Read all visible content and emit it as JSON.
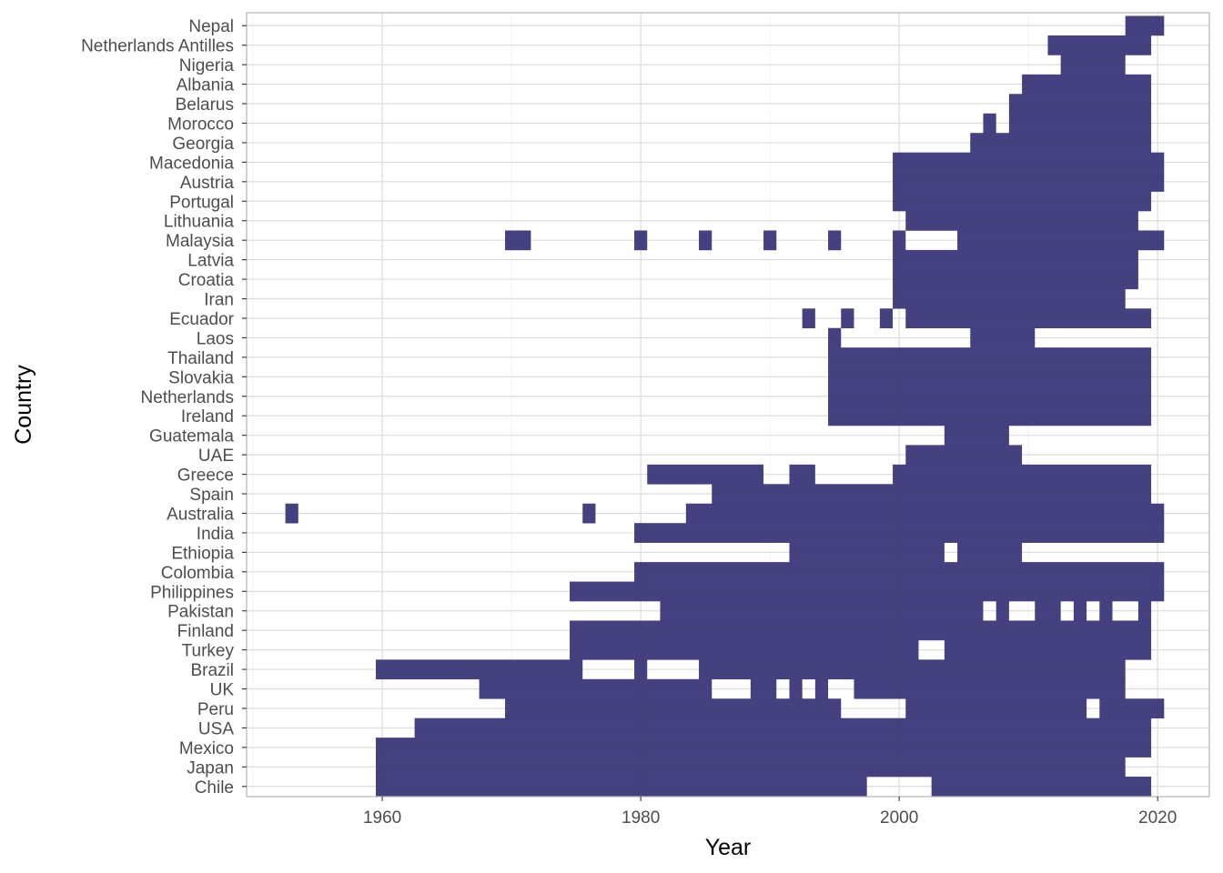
{
  "chart_data": {
    "type": "heatmap",
    "xlabel": "Year",
    "ylabel": "Country",
    "xlim": [
      1949.5,
      2024
    ],
    "x_ticks": [
      1960,
      1980,
      2000,
      2020
    ],
    "grid": true,
    "legend": "none",
    "fill_color": "#3f3a7b",
    "countries": [
      "Chile",
      "Japan",
      "Mexico",
      "USA",
      "Peru",
      "UK",
      "Brazil",
      "Turkey",
      "Finland",
      "Pakistan",
      "Philippines",
      "Colombia",
      "Ethiopia",
      "India",
      "Australia",
      "Spain",
      "Greece",
      "UAE",
      "Guatemala",
      "Ireland",
      "Netherlands",
      "Slovakia",
      "Thailand",
      "Laos",
      "Ecuador",
      "Iran",
      "Croatia",
      "Latvia",
      "Malaysia",
      "Lithuania",
      "Portugal",
      "Austria",
      "Macedonia",
      "Georgia",
      "Morocco",
      "Belarus",
      "Albania",
      "Nigeria",
      "Netherlands Antilles",
      "Nepal"
    ],
    "series": [
      {
        "country": "Chile",
        "ranges": [
          [
            1960,
            1997
          ],
          [
            2003,
            2019
          ]
        ]
      },
      {
        "country": "Japan",
        "ranges": [
          [
            1960,
            2017
          ]
        ]
      },
      {
        "country": "Mexico",
        "ranges": [
          [
            1960,
            2019
          ]
        ]
      },
      {
        "country": "USA",
        "ranges": [
          [
            1963,
            2019
          ]
        ]
      },
      {
        "country": "Peru",
        "ranges": [
          [
            1970,
            1995
          ],
          [
            2001,
            2014
          ],
          [
            2016,
            2020
          ]
        ]
      },
      {
        "country": "UK",
        "ranges": [
          [
            1968,
            1985
          ],
          [
            1989,
            1990
          ],
          [
            1992,
            1992
          ],
          [
            1994,
            1994
          ],
          [
            1997,
            2017
          ]
        ]
      },
      {
        "country": "Brazil",
        "ranges": [
          [
            1960,
            1975
          ],
          [
            1980,
            1980
          ],
          [
            1985,
            2017
          ]
        ]
      },
      {
        "country": "Turkey",
        "ranges": [
          [
            1975,
            2001
          ],
          [
            2004,
            2019
          ]
        ]
      },
      {
        "country": "Finland",
        "ranges": [
          [
            1975,
            2019
          ]
        ]
      },
      {
        "country": "Pakistan",
        "ranges": [
          [
            1982,
            2006
          ],
          [
            2008,
            2008
          ],
          [
            2011,
            2012
          ],
          [
            2014,
            2014
          ],
          [
            2016,
            2016
          ],
          [
            2019,
            2019
          ]
        ]
      },
      {
        "country": "Philippines",
        "ranges": [
          [
            1975,
            2020
          ]
        ]
      },
      {
        "country": "Colombia",
        "ranges": [
          [
            1980,
            2020
          ]
        ]
      },
      {
        "country": "Ethiopia",
        "ranges": [
          [
            1992,
            2003
          ],
          [
            2005,
            2009
          ]
        ]
      },
      {
        "country": "India",
        "ranges": [
          [
            1980,
            2020
          ]
        ]
      },
      {
        "country": "Australia",
        "ranges": [
          [
            1953,
            1953
          ],
          [
            1976,
            1976
          ],
          [
            1984,
            2020
          ]
        ]
      },
      {
        "country": "Spain",
        "ranges": [
          [
            1986,
            2019
          ]
        ]
      },
      {
        "country": "Greece",
        "ranges": [
          [
            1981,
            1989
          ],
          [
            1992,
            1993
          ],
          [
            2000,
            2019
          ]
        ]
      },
      {
        "country": "UAE",
        "ranges": [
          [
            2001,
            2009
          ]
        ]
      },
      {
        "country": "Guatemala",
        "ranges": [
          [
            2004,
            2008
          ]
        ]
      },
      {
        "country": "Ireland",
        "ranges": [
          [
            1995,
            2019
          ]
        ]
      },
      {
        "country": "Netherlands",
        "ranges": [
          [
            1995,
            2019
          ]
        ]
      },
      {
        "country": "Slovakia",
        "ranges": [
          [
            1995,
            2019
          ]
        ]
      },
      {
        "country": "Thailand",
        "ranges": [
          [
            1995,
            2019
          ]
        ]
      },
      {
        "country": "Laos",
        "ranges": [
          [
            1995,
            1995
          ],
          [
            2006,
            2010
          ]
        ]
      },
      {
        "country": "Ecuador",
        "ranges": [
          [
            1993,
            1993
          ],
          [
            1996,
            1996
          ],
          [
            1999,
            1999
          ],
          [
            2001,
            2019
          ]
        ]
      },
      {
        "country": "Iran",
        "ranges": [
          [
            2000,
            2017
          ]
        ]
      },
      {
        "country": "Croatia",
        "ranges": [
          [
            2000,
            2018
          ]
        ]
      },
      {
        "country": "Latvia",
        "ranges": [
          [
            2000,
            2018
          ]
        ]
      },
      {
        "country": "Malaysia",
        "ranges": [
          [
            1970,
            1971
          ],
          [
            1980,
            1980
          ],
          [
            1985,
            1985
          ],
          [
            1990,
            1990
          ],
          [
            1995,
            1995
          ],
          [
            2000,
            2000
          ],
          [
            2005,
            2020
          ]
        ]
      },
      {
        "country": "Lithuania",
        "ranges": [
          [
            2001,
            2018
          ]
        ]
      },
      {
        "country": "Portugal",
        "ranges": [
          [
            2000,
            2019
          ]
        ]
      },
      {
        "country": "Austria",
        "ranges": [
          [
            2000,
            2020
          ]
        ]
      },
      {
        "country": "Macedonia",
        "ranges": [
          [
            2000,
            2020
          ]
        ]
      },
      {
        "country": "Georgia",
        "ranges": [
          [
            2006,
            2019
          ]
        ]
      },
      {
        "country": "Morocco",
        "ranges": [
          [
            2007,
            2007
          ],
          [
            2009,
            2019
          ]
        ]
      },
      {
        "country": "Belarus",
        "ranges": [
          [
            2009,
            2019
          ]
        ]
      },
      {
        "country": "Albania",
        "ranges": [
          [
            2010,
            2019
          ]
        ]
      },
      {
        "country": "Nigeria",
        "ranges": [
          [
            2013,
            2017
          ]
        ]
      },
      {
        "country": "Netherlands Antilles",
        "ranges": [
          [
            2012,
            2019
          ]
        ]
      },
      {
        "country": "Nepal",
        "ranges": [
          [
            2018,
            2020
          ]
        ]
      }
    ]
  }
}
